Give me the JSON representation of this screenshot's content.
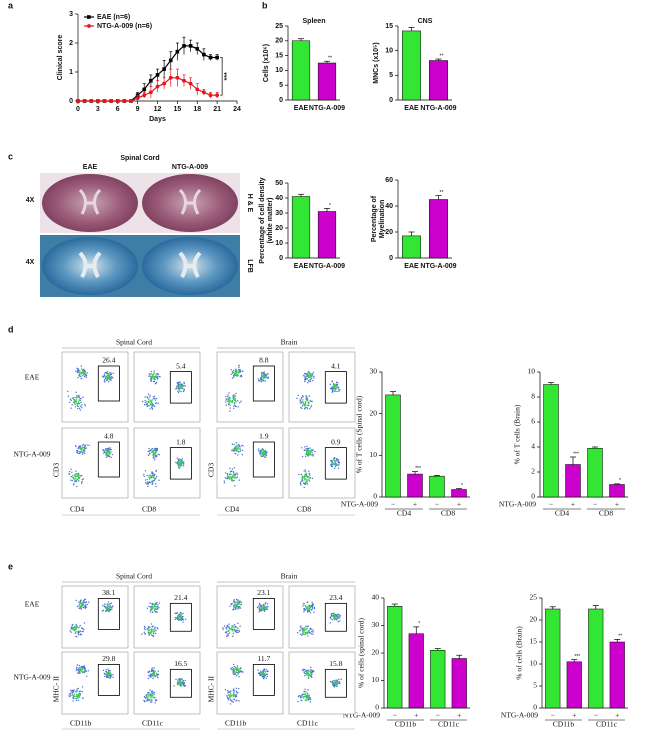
{
  "panel_labels": [
    "a",
    "b",
    "c",
    "d",
    "e"
  ],
  "chart_data": [
    {
      "type": "line",
      "xlabel": "Days",
      "ylabel": "Clinical score",
      "x": [
        0,
        1,
        2,
        3,
        4,
        5,
        6,
        7,
        8,
        9,
        10,
        11,
        12,
        13,
        14,
        15,
        16,
        17,
        18,
        19,
        20,
        21
      ],
      "series": [
        {
          "name": "EAE (n=6)",
          "color": "#000000",
          "marker": "square",
          "values": [
            0,
            0,
            0,
            0,
            0,
            0,
            0,
            0,
            0,
            0.2,
            0.4,
            0.7,
            0.9,
            1.1,
            1.4,
            1.7,
            1.9,
            1.9,
            1.8,
            1.6,
            1.5,
            1.5
          ],
          "errors": [
            0,
            0,
            0,
            0,
            0,
            0,
            0,
            0,
            0,
            0.1,
            0.2,
            0.2,
            0.2,
            0.3,
            0.3,
            0.3,
            0.3,
            0.2,
            0.2,
            0.2,
            0.1,
            0.1
          ]
        },
        {
          "name": "NTG-A-009 (n=6)",
          "color": "#e8141c",
          "marker": "circle",
          "values": [
            0,
            0,
            0,
            0,
            0,
            0,
            0,
            0,
            0,
            0.1,
            0.2,
            0.3,
            0.5,
            0.6,
            0.8,
            0.8,
            0.7,
            0.6,
            0.4,
            0.3,
            0.2,
            0.2
          ],
          "errors": [
            0,
            0,
            0,
            0,
            0,
            0,
            0,
            0,
            0,
            0.1,
            0.1,
            0.2,
            0.2,
            0.2,
            0.3,
            0.3,
            0.2,
            0.2,
            0.2,
            0.1,
            0.1,
            0.1
          ]
        }
      ],
      "xlim": [
        0,
        24
      ],
      "xticks": [
        0,
        3,
        6,
        9,
        12,
        15,
        18,
        21,
        24
      ],
      "ylim": [
        0,
        3
      ],
      "yticks": [
        0,
        1,
        2,
        3
      ],
      "annotation": "***"
    },
    {
      "type": "bar",
      "title": "Spleen",
      "ylabel": [
        "Cells (x10⁶)"
      ],
      "categories": [
        "EAE",
        "NTG-A-009"
      ],
      "values": [
        20,
        12.5
      ],
      "errors": [
        0.7,
        0.6
      ],
      "colors": [
        "#33e633",
        "#cc00cc"
      ],
      "significance": [
        null,
        "**"
      ],
      "ylim": [
        0,
        25
      ],
      "yticks": [
        0,
        5,
        10,
        15,
        20,
        25
      ]
    },
    {
      "type": "bar",
      "title": "CNS",
      "ylabel": [
        "MNCs  (x10⁵)"
      ],
      "categories": [
        "EAE",
        "NTG-A-009"
      ],
      "values": [
        14,
        8
      ],
      "errors": [
        0.7,
        0.3
      ],
      "colors": [
        "#33e633",
        "#cc00cc"
      ],
      "significance": [
        null,
        "**"
      ],
      "ylim": [
        0,
        15
      ],
      "yticks": [
        0,
        5,
        10,
        15
      ]
    },
    {
      "type": "bar",
      "ylabel": [
        "Percentage of cell density",
        "(white matter)"
      ],
      "categories": [
        "EAE",
        "NTG-A-009"
      ],
      "values": [
        41,
        31
      ],
      "errors": [
        1.5,
        2
      ],
      "colors": [
        "#33e633",
        "#cc00cc"
      ],
      "significance": [
        null,
        "*"
      ],
      "ylim": [
        0,
        50
      ],
      "yticks": [
        0,
        10,
        20,
        30,
        40,
        50
      ]
    },
    {
      "type": "bar",
      "ylabel": [
        "Percentage of",
        "Myelination"
      ],
      "categories": [
        "EAE",
        "NTG-A-009"
      ],
      "values": [
        17,
        45
      ],
      "errors": [
        3,
        3
      ],
      "colors": [
        "#33e633",
        "#cc00cc"
      ],
      "significance": [
        null,
        "**"
      ],
      "ylim": [
        0,
        60
      ],
      "yticks": [
        0,
        20,
        40,
        60
      ]
    },
    {
      "type": "bar",
      "ylabel": [
        "% of T cells (Spinal cord)"
      ],
      "categories": [
        "−",
        "+",
        "−",
        "+"
      ],
      "groups": [
        "CD4",
        "CD8"
      ],
      "row_label": "NTG-A-009",
      "values": [
        24.5,
        5.5,
        5,
        1.8
      ],
      "errors": [
        0.8,
        0.6,
        0.2,
        0.2
      ],
      "colors": [
        "#33e633",
        "#cc00cc",
        "#33e633",
        "#cc00cc"
      ],
      "significance": [
        null,
        "***",
        null,
        "*"
      ],
      "ylim": [
        0,
        30
      ],
      "yticks": [
        0,
        10,
        20,
        30
      ]
    },
    {
      "type": "bar",
      "ylabel": [
        "% of T cells (Brain)"
      ],
      "categories": [
        "−",
        "+",
        "−",
        "+"
      ],
      "groups": [
        "CD4",
        "CD8"
      ],
      "row_label": "NTG-A-009",
      "values": [
        9,
        2.6,
        3.9,
        1.0
      ],
      "errors": [
        0.15,
        0.6,
        0.1,
        0.05
      ],
      "colors": [
        "#33e633",
        "#cc00cc",
        "#33e633",
        "#cc00cc"
      ],
      "significance": [
        null,
        "***",
        null,
        "*"
      ],
      "ylim": [
        0,
        10
      ],
      "yticks": [
        0,
        2,
        4,
        6,
        8,
        10
      ]
    },
    {
      "type": "bar",
      "ylabel": [
        "% of  cells (spinal cord)"
      ],
      "categories": [
        "−",
        "+",
        "−",
        "+"
      ],
      "groups": [
        "CD11b",
        "CD11c"
      ],
      "row_label": "NTG-A-009",
      "values": [
        37,
        27,
        21,
        18
      ],
      "errors": [
        0.8,
        2.5,
        0.6,
        1.2
      ],
      "colors": [
        "#33e633",
        "#cc00cc",
        "#33e633",
        "#cc00cc"
      ],
      "significance": [
        null,
        "*",
        null,
        null
      ],
      "ylim": [
        0,
        40
      ],
      "yticks": [
        0,
        10,
        20,
        30,
        40
      ]
    },
    {
      "type": "bar",
      "ylabel": [
        "% of  cells (Brain)"
      ],
      "categories": [
        "−",
        "+",
        "−",
        "+"
      ],
      "groups": [
        "CD11b",
        "CD11c"
      ],
      "row_label": "NTG-A-009",
      "values": [
        22.5,
        10.5,
        22.5,
        15
      ],
      "errors": [
        0.5,
        0.5,
        0.8,
        0.6
      ],
      "colors": [
        "#33e633",
        "#cc00cc",
        "#33e633",
        "#cc00cc"
      ],
      "significance": [
        null,
        "***",
        null,
        "**"
      ],
      "ylim": [
        0,
        25
      ],
      "yticks": [
        0,
        5,
        10,
        15,
        20,
        25
      ]
    }
  ],
  "histology": {
    "title": "Spinal Cord",
    "columns": [
      "EAE",
      "NTG-A-009"
    ],
    "magnifications": [
      "4X",
      "4X"
    ],
    "stains": [
      "H & E",
      "LFB"
    ]
  },
  "flow": [
    {
      "rows": [
        "EAE",
        "NTG-A-009"
      ],
      "x_labels": [
        "CD4",
        "CD8"
      ],
      "y_label": "CD3",
      "groups": [
        {
          "title": "Spinal Cord",
          "gates": [
            [
              26.4,
              5.4
            ],
            [
              4.8,
              1.8
            ]
          ]
        },
        {
          "title": "Brain",
          "gates": [
            [
              8.8,
              4.1
            ],
            [
              1.9,
              0.9
            ]
          ]
        }
      ]
    },
    {
      "rows": [
        "EAE",
        "NTG-A-009"
      ],
      "x_labels": [
        "CD11b",
        "CD11c"
      ],
      "y_label": "MHC- II",
      "groups": [
        {
          "title": "Spinal Cord",
          "gates": [
            [
              38.1,
              21.4
            ],
            [
              29.8,
              16.5
            ]
          ]
        },
        {
          "title": "Brain",
          "gates": [
            [
              23.1,
              23.4
            ],
            [
              11.7,
              15.8
            ]
          ]
        }
      ]
    }
  ]
}
